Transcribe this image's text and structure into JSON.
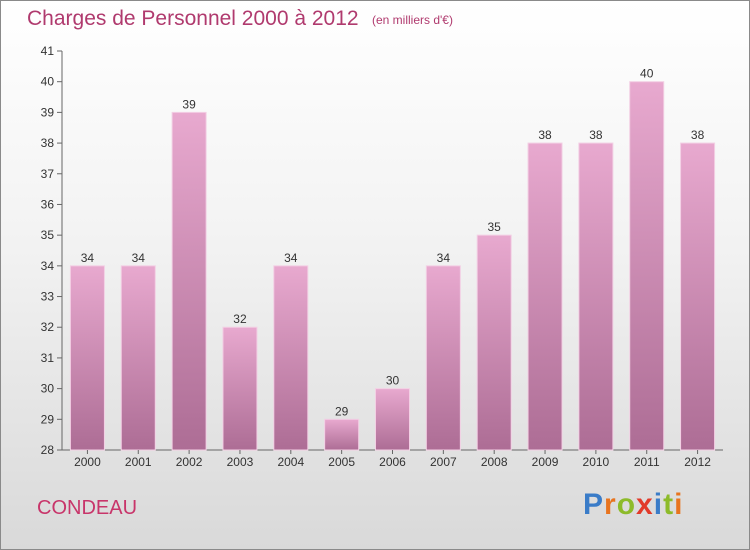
{
  "header": {
    "title": "Charges de Personnel 2000 à 2012",
    "unit": "(en milliers d'€)"
  },
  "commune": "CONDEAU",
  "logo": {
    "text": "Proxiti",
    "letter_colors": [
      "#3a7cc8",
      "#e8741e",
      "#8dbb2a",
      "#e23a2a",
      "#3a7cc8",
      "#8dbb2a",
      "#e8741e"
    ]
  },
  "colors": {
    "title": "#b03a6e",
    "bar_top": "#e8a9cf",
    "bar_bottom": "#ad6d95",
    "bar_edge": "#f3cfe4"
  },
  "chart_data": {
    "type": "bar",
    "title": "Charges de Personnel 2000 à 2012",
    "subtitle": "(en milliers d'€)",
    "categories": [
      "2000",
      "2001",
      "2002",
      "2003",
      "2004",
      "2005",
      "2006",
      "2007",
      "2008",
      "2009",
      "2010",
      "2011",
      "2012"
    ],
    "values": [
      34,
      34,
      39,
      32,
      34,
      29,
      30,
      34,
      35,
      38,
      38,
      40,
      38
    ],
    "ylim": [
      28,
      41
    ],
    "yticks": [
      28,
      29,
      30,
      31,
      32,
      33,
      34,
      35,
      36,
      37,
      38,
      39,
      40,
      41
    ],
    "grid": false,
    "legend": "none"
  }
}
